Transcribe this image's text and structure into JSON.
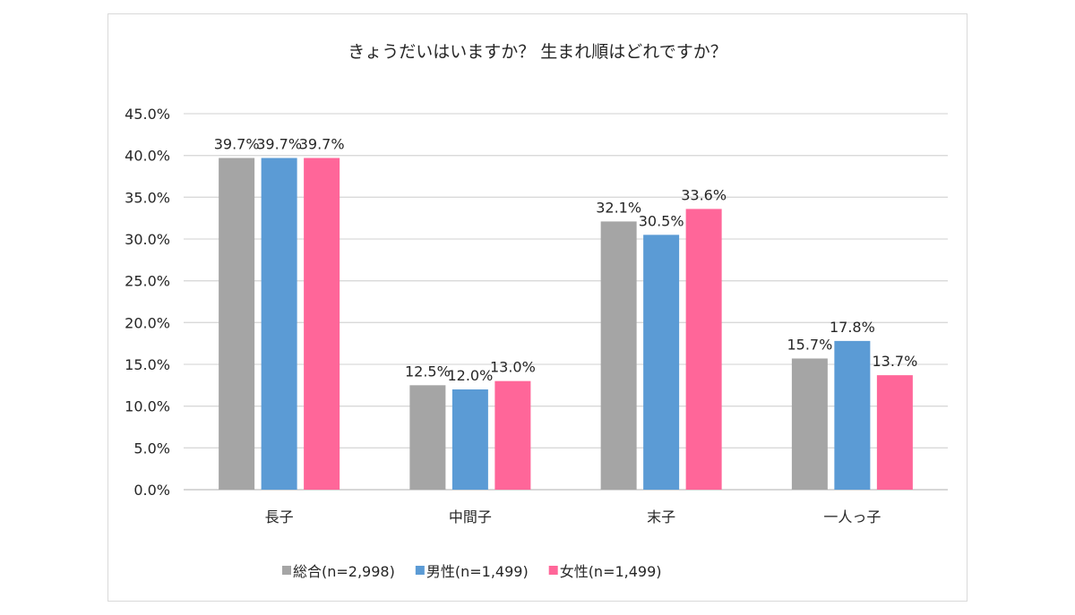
{
  "chart_data": {
    "type": "bar",
    "title": "きょうだいはいますか？ 生まれ順はどれですか？",
    "categories": [
      "長子",
      "中間子",
      "末子",
      "一人っ子"
    ],
    "series": [
      {
        "name": "総合(n=2,998)",
        "color": "#a5a5a5",
        "values": [
          39.7,
          12.5,
          32.1,
          15.7
        ]
      },
      {
        "name": "男性(n=1,499)",
        "color": "#5b9bd5",
        "values": [
          39.7,
          12.0,
          30.5,
          17.8
        ]
      },
      {
        "name": "女性(n=1,499)",
        "color": "#ff6699",
        "values": [
          39.7,
          13.0,
          33.6,
          13.7
        ]
      }
    ],
    "value_format": "percent_1dp",
    "yticks": [
      "0.0%",
      "5.0%",
      "10.0%",
      "15.0%",
      "20.0%",
      "25.0%",
      "30.0%",
      "35.0%",
      "40.0%",
      "45.0%"
    ],
    "ylim": [
      0,
      45
    ],
    "grid": true,
    "legend": "bottom"
  }
}
